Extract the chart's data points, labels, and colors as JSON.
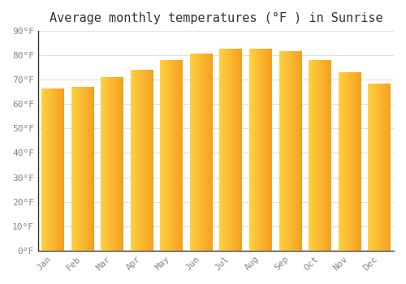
{
  "title": "Average monthly temperatures (°F ) in Sunrise",
  "months": [
    "Jan",
    "Feb",
    "Mar",
    "Apr",
    "May",
    "Jun",
    "Jul",
    "Aug",
    "Sep",
    "Oct",
    "Nov",
    "Dec"
  ],
  "values": [
    66.5,
    67.0,
    71.0,
    74.0,
    78.0,
    80.5,
    82.5,
    82.5,
    81.5,
    78.0,
    73.0,
    68.5
  ],
  "bar_color_left": "#FFD040",
  "bar_color_right": "#F4A020",
  "ylim": [
    0,
    90
  ],
  "yticks": [
    0,
    10,
    20,
    30,
    40,
    50,
    60,
    70,
    80,
    90
  ],
  "ytick_labels": [
    "0°F",
    "10°F",
    "20°F",
    "30°F",
    "40°F",
    "50°F",
    "60°F",
    "70°F",
    "80°F",
    "90°F"
  ],
  "background_color": "#ffffff",
  "grid_color": "#e0e0e0",
  "title_fontsize": 11,
  "tick_fontsize": 8,
  "bar_width": 0.75,
  "gradient_steps": 50
}
